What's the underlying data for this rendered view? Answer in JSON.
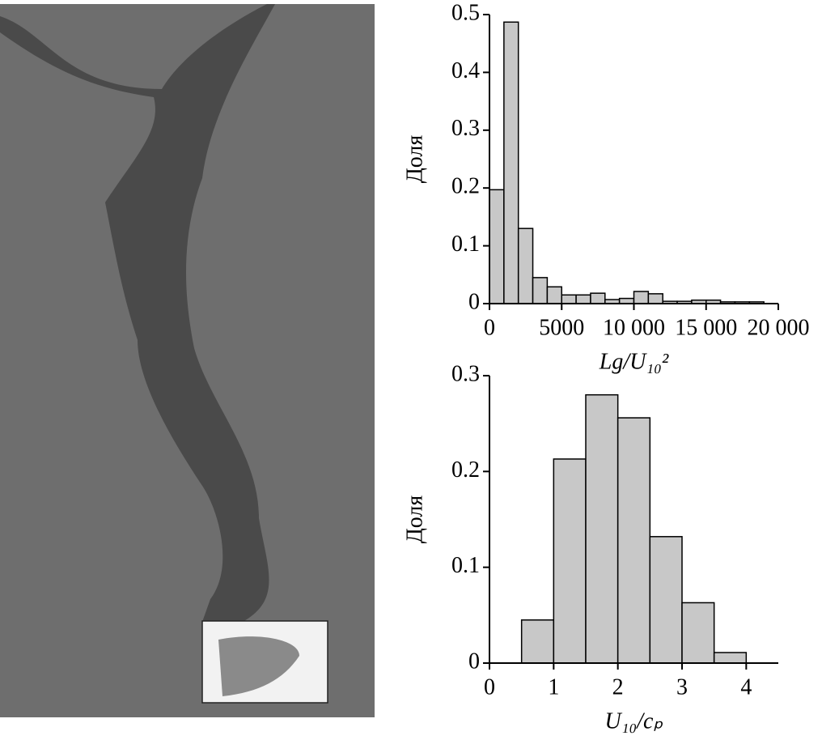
{
  "chart_data": [
    {
      "type": "histogram",
      "color": "#c8c8c8",
      "xlabel": "Lg/U₁₀²",
      "ylabel": "Доля",
      "bins": [
        0,
        1000,
        2000,
        3000,
        4000,
        5000,
        6000,
        7000,
        8000,
        9000,
        10000,
        11000,
        12000,
        13000,
        14000,
        15000,
        16000,
        17000,
        18000,
        19000
      ],
      "values": [
        0.197,
        0.487,
        0.13,
        0.045,
        0.029,
        0.015,
        0.015,
        0.018,
        0.007,
        0.009,
        0.021,
        0.017,
        0.004,
        0.004,
        0.006,
        0.006,
        0.003,
        0.003,
        0.003
      ],
      "xlim": [
        0,
        20000
      ],
      "ylim": [
        0,
        0.5
      ],
      "xticks": [
        0,
        5000,
        {
          "value": 10000,
          "label": "10 000"
        },
        {
          "value": 15000,
          "label": "15 000"
        },
        {
          "value": 20000,
          "label": "20 000"
        }
      ],
      "yticks": [
        0,
        0.1,
        0.2,
        0.3,
        0.4,
        0.5
      ]
    },
    {
      "type": "histogram",
      "color": "#c8c8c8",
      "xlabel": "U₁₀/cₚ",
      "ylabel": "Доля",
      "bins": [
        0.5,
        1,
        1.5,
        2,
        2.5,
        3,
        3.5,
        4
      ],
      "values": [
        0.045,
        0.213,
        0.28,
        0.256,
        0.132,
        0.063,
        0.011
      ],
      "xlim": [
        0,
        4.5
      ],
      "ylim": [
        0,
        0.3
      ],
      "xticks": [
        0,
        1,
        2,
        3,
        4
      ],
      "yticks": [
        0,
        0.1,
        0.2,
        0.3
      ]
    }
  ]
}
